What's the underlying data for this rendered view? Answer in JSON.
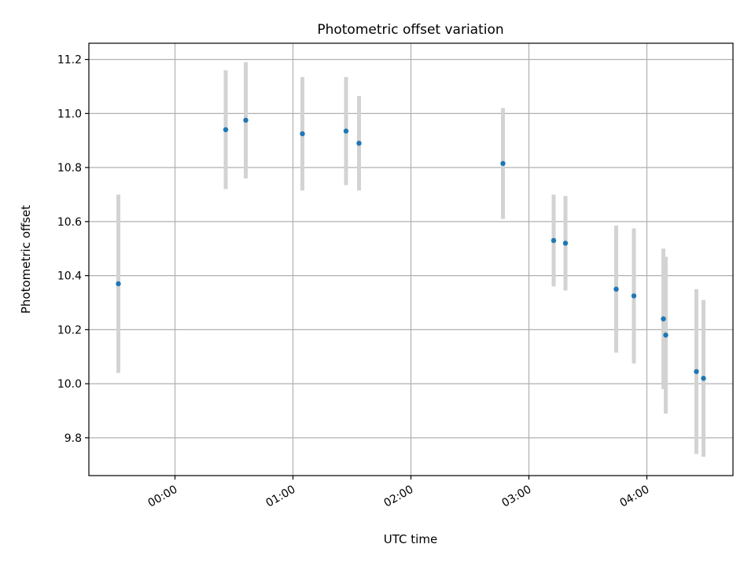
{
  "chart_data": {
    "type": "scatter",
    "title": "Photometric offset variation",
    "xlabel": "UTC time",
    "ylabel": "Photometric offset",
    "x_ticks": [
      {
        "label": "00:00",
        "hours": 0
      },
      {
        "label": "01:00",
        "hours": 1
      },
      {
        "label": "02:00",
        "hours": 2
      },
      {
        "label": "03:00",
        "hours": 3
      },
      {
        "label": "04:00",
        "hours": 4
      }
    ],
    "y_ticks": [
      9.8,
      10.0,
      10.2,
      10.4,
      10.6,
      10.8,
      11.0,
      11.2
    ],
    "xlim_hours": [
      -0.73,
      4.73
    ],
    "ylim": [
      9.66,
      11.26
    ],
    "grid": true,
    "colors": {
      "point": "#1f77b4",
      "errorbar": "#d3d3d3",
      "grid": "#b0b0b0"
    },
    "series": [
      {
        "points": [
          {
            "time": "23:28",
            "hours": -0.48,
            "y": 10.37,
            "err": 0.33
          },
          {
            "time": "00:25",
            "hours": 0.43,
            "y": 10.94,
            "err": 0.22
          },
          {
            "time": "00:36",
            "hours": 0.6,
            "y": 10.975,
            "err": 0.215
          },
          {
            "time": "01:04",
            "hours": 1.08,
            "y": 10.925,
            "err": 0.21
          },
          {
            "time": "01:26",
            "hours": 1.45,
            "y": 10.935,
            "err": 0.2
          },
          {
            "time": "01:33",
            "hours": 1.56,
            "y": 10.89,
            "err": 0.175
          },
          {
            "time": "02:46",
            "hours": 2.78,
            "y": 10.815,
            "err": 0.205
          },
          {
            "time": "03:12",
            "hours": 3.21,
            "y": 10.53,
            "err": 0.17
          },
          {
            "time": "03:19",
            "hours": 3.31,
            "y": 10.52,
            "err": 0.175
          },
          {
            "time": "03:44",
            "hours": 3.74,
            "y": 10.35,
            "err": 0.235
          },
          {
            "time": "03:53",
            "hours": 3.89,
            "y": 10.325,
            "err": 0.25
          },
          {
            "time": "04:08",
            "hours": 4.14,
            "y": 10.24,
            "err": 0.26
          },
          {
            "time": "04:09",
            "hours": 4.16,
            "y": 10.18,
            "err": 0.29
          },
          {
            "time": "04:25",
            "hours": 4.42,
            "y": 10.045,
            "err": 0.305
          },
          {
            "time": "04:29",
            "hours": 4.48,
            "y": 10.02,
            "err": 0.29
          }
        ]
      }
    ]
  }
}
